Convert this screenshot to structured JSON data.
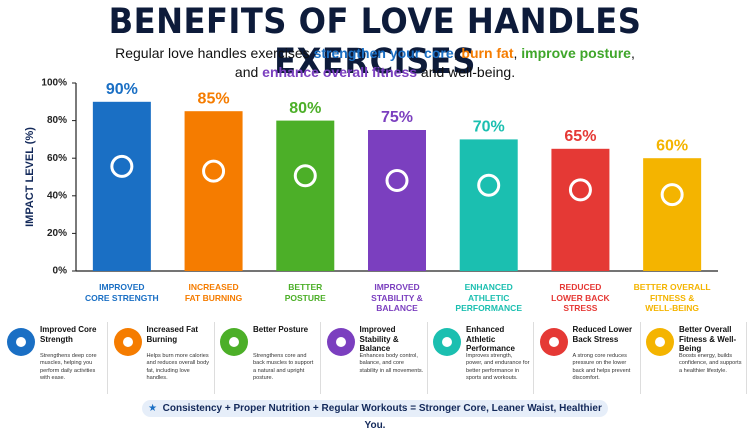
{
  "chart_data": {
    "type": "bar",
    "title": "BENEFITS OF LOVE HANDLES EXERCISES",
    "subtitle": [
      [
        {
          "text": "Regular love handles exercises "
        },
        {
          "text": "strengthen your core",
          "color": "#1a6fc4"
        },
        {
          "text": ", "
        },
        {
          "text": "burn fat",
          "color": "#f57c00"
        },
        {
          "text": ", "
        },
        {
          "text": "improve posture",
          "color": "#3fa62a"
        },
        {
          "text": ","
        }
      ],
      [
        {
          "text": "and "
        },
        {
          "text": "enhance overall fitness",
          "color": "#7b3fbf"
        },
        {
          "text": " and well-being."
        }
      ]
    ],
    "y_label": "IMPACT LEVEL (%)",
    "categories": [
      "IMPROVED\nCORE STRENGTH",
      "INCREASED\nFAT BURNING",
      "BETTER\nPOSTURE",
      "IMPROVED\nSTABILITY &\nBALANCE",
      "ENHANCED\nATHLETIC\nPERFORMANCE",
      "REDUCED\nLOWER BACK\nSTRESS",
      "BETTER OVERALL\nFITNESS &\nWELL-BEING"
    ],
    "values": [
      90,
      85,
      80,
      75,
      70,
      65,
      60
    ],
    "value_labels": [
      "90%",
      "85%",
      "80%",
      "75%",
      "70%",
      "65%",
      "60%"
    ],
    "colors": [
      "#1a6fc4",
      "#f57c00",
      "#4caf28",
      "#7b3fbf",
      "#1bbfb0",
      "#e53935",
      "#f4b400"
    ],
    "ylim": [
      0,
      100
    ],
    "yticks": [
      {
        "value": 0,
        "label": "0%"
      },
      {
        "value": 20,
        "label": "20%"
      },
      {
        "value": 40,
        "label": "40%"
      },
      {
        "value": 60,
        "label": "60%"
      },
      {
        "value": 80,
        "label": "80%"
      },
      {
        "value": 100,
        "label": "100%"
      }
    ]
  },
  "cards": [
    {
      "title": "Improved Core Strength",
      "text": "Strengthens deep core muscles, helping you perform daily activities with ease."
    },
    {
      "title": "Increased Fat Burning",
      "text": "Helps burn more calories and reduces overall body fat, including love handles."
    },
    {
      "title": "Better Posture",
      "text": "Strengthens core and back muscles to support a natural and upright posture."
    },
    {
      "title": "Improved Stability & Balance",
      "text": "Enhances body control, balance, and core stability in all movements."
    },
    {
      "title": "Enhanced Athletic Performance",
      "text": "Improves strength, power, and endurance for better performance in sports and workouts."
    },
    {
      "title": "Reduced Lower Back Stress",
      "text": "A strong core reduces pressure on the lower back and helps prevent discomfort."
    },
    {
      "title": "Better Overall Fitness & Well-Being",
      "text": "Boosts energy, builds confidence, and supports a healthier lifestyle."
    }
  ],
  "footer": "Consistency + Proper Nutrition + Regular Workouts = Stronger Core, Leaner Waist, Healthier You."
}
